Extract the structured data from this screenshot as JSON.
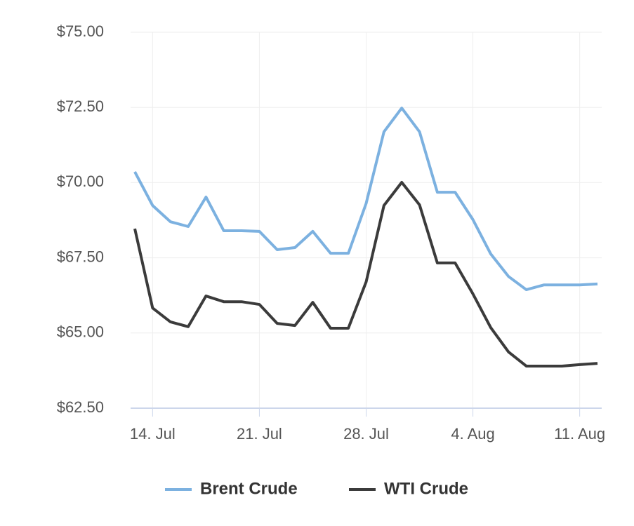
{
  "chart_data": {
    "type": "line",
    "categories": [
      null,
      "14. Jul",
      null,
      null,
      null,
      null,
      null,
      "21. Jul",
      null,
      null,
      null,
      null,
      null,
      "28. Jul",
      null,
      null,
      null,
      null,
      null,
      "4. Aug",
      null,
      null,
      null,
      null,
      null,
      "11. Aug",
      null
    ],
    "series": [
      {
        "name": "Brent Crude",
        "color": "#7cb1e0",
        "values": [
          70.36,
          69.24,
          68.7,
          68.54,
          69.52,
          68.4,
          68.4,
          68.38,
          67.77,
          67.84,
          68.38,
          67.65,
          67.65,
          69.31,
          71.69,
          72.48,
          71.69,
          69.68,
          69.68,
          68.77,
          67.63,
          66.88,
          66.44,
          66.6,
          66.6,
          66.6,
          66.63
        ]
      },
      {
        "name": "WTI Crude",
        "color": "#3b3b3b",
        "values": [
          68.47,
          65.83,
          65.37,
          65.21,
          66.23,
          66.04,
          66.04,
          65.95,
          65.32,
          65.25,
          66.02,
          65.16,
          65.16,
          66.7,
          69.24,
          70.01,
          69.26,
          67.33,
          67.33,
          66.3,
          65.18,
          64.37,
          63.9,
          63.9,
          63.9,
          63.95,
          63.99
        ]
      }
    ],
    "ylim": [
      62.5,
      75
    ],
    "yticks": [
      {
        "value": 62.5,
        "label": "$62.50"
      },
      {
        "value": 65,
        "label": "$65.00"
      },
      {
        "value": 67.5,
        "label": "$67.50"
      },
      {
        "value": 70,
        "label": "$70.00"
      },
      {
        "value": 72.5,
        "label": "$72.50"
      },
      {
        "value": 75,
        "label": "$75.00"
      }
    ],
    "grid": true,
    "legend": "bottom"
  }
}
